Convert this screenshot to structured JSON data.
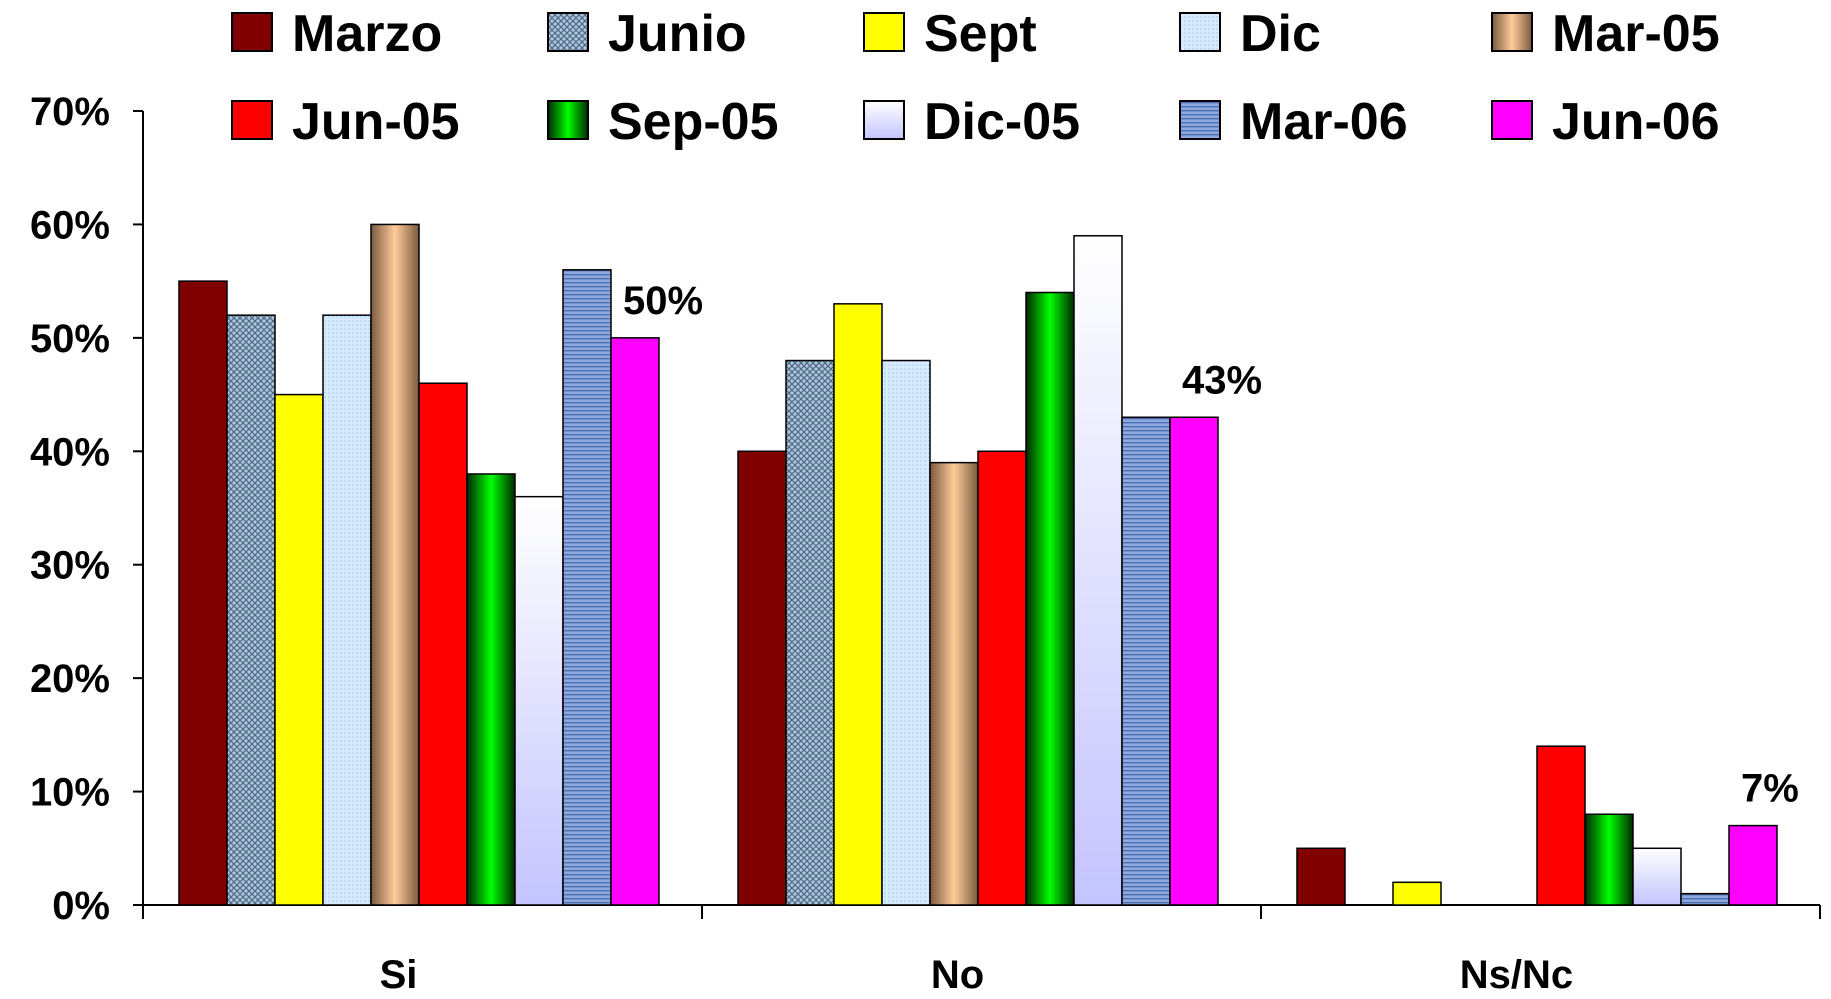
{
  "chart_data": {
    "type": "bar",
    "title": "",
    "xlabel": "",
    "ylabel": "",
    "ylim": [
      0,
      70
    ],
    "y_ticks": [
      0,
      10,
      20,
      30,
      40,
      50,
      60,
      70
    ],
    "y_tick_format": "%",
    "grid": false,
    "legend": "top",
    "categories": [
      "Si",
      "No",
      "Ns/Nc"
    ],
    "series": [
      {
        "name": "Marzo",
        "color": "#800000",
        "fill": "solid",
        "values": [
          55,
          40,
          5
        ]
      },
      {
        "name": "Junio",
        "color": "#99b4cc",
        "fill": "crosshatch",
        "values": [
          52,
          48,
          null
        ]
      },
      {
        "name": "Sept",
        "color": "#ffff00",
        "fill": "solid",
        "values": [
          45,
          53,
          2
        ]
      },
      {
        "name": "Dic",
        "color": "#cce6ff",
        "fill": "dots",
        "values": [
          52,
          48,
          null
        ]
      },
      {
        "name": "Mar-05",
        "color": "#8b6a4e",
        "fill": "gradient-light-center",
        "center_color": "#ffcc99",
        "values": [
          60,
          39,
          null
        ]
      },
      {
        "name": "Jun-05",
        "color": "#ff0000",
        "fill": "solid",
        "values": [
          46,
          40,
          14
        ]
      },
      {
        "name": "Sep-05",
        "color": "#003300",
        "fill": "gradient-light-center",
        "center_color": "#00ff00",
        "values": [
          38,
          54,
          8
        ]
      },
      {
        "name": "Dic-05",
        "color": "#ffffff",
        "fill": "gradient-vertical",
        "bottom_color": "#ccccff",
        "values": [
          36,
          59,
          5
        ]
      },
      {
        "name": "Mar-06",
        "color": "#6f8fcf",
        "fill": "hstripes",
        "values": [
          56,
          43,
          1
        ]
      },
      {
        "name": "Jun-06",
        "color": "#ff00ff",
        "fill": "solid",
        "values": [
          50,
          43,
          7
        ]
      }
    ],
    "annotations": [
      {
        "text": "50%",
        "category": "Si",
        "series": "Jun-06"
      },
      {
        "text": "43%",
        "category": "No",
        "series": "Jun-06"
      },
      {
        "text": "7%",
        "category": "Ns/Nc",
        "series": "Jun-06"
      }
    ]
  }
}
